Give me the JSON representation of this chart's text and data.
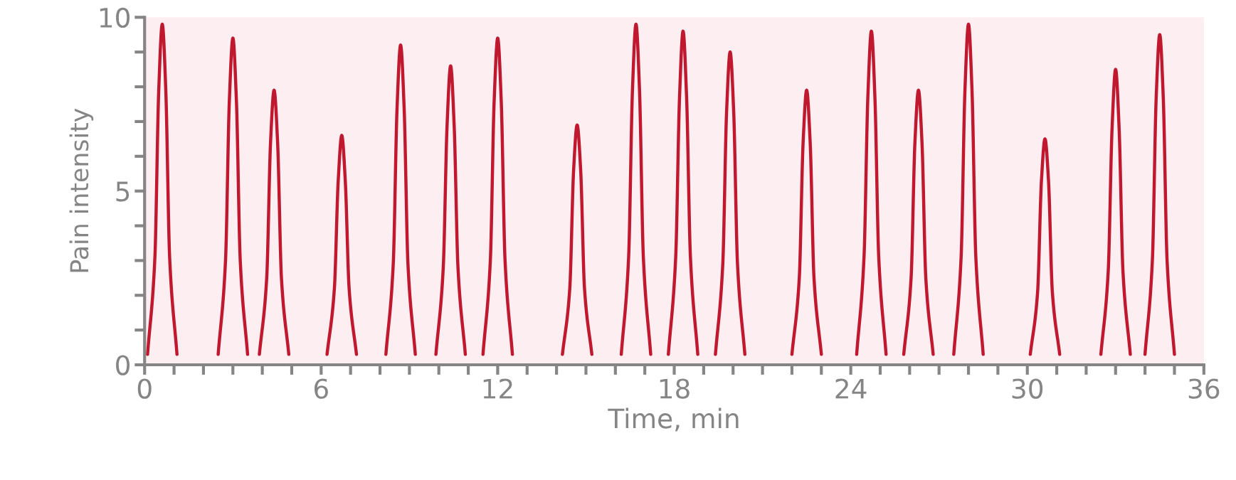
{
  "chart_data": {
    "type": "line",
    "xlabel": "Time, min",
    "ylabel": "Pain intensity",
    "xlim": [
      0,
      36
    ],
    "xticks": [
      0,
      {
        "value": 1,
        "label": null
      },
      {
        "value": 2,
        "label": null
      },
      {
        "value": 3,
        "label": null
      },
      {
        "value": 4,
        "label": null
      },
      {
        "value": 5,
        "label": null
      },
      6,
      {
        "value": 7,
        "label": null
      },
      {
        "value": 8,
        "label": null
      },
      {
        "value": 9,
        "label": null
      },
      {
        "value": 10,
        "label": null
      },
      {
        "value": 11,
        "label": null
      },
      12,
      {
        "value": 13,
        "label": null
      },
      {
        "value": 14,
        "label": null
      },
      {
        "value": 15,
        "label": null
      },
      {
        "value": 16,
        "label": null
      },
      {
        "value": 17,
        "label": null
      },
      18,
      {
        "value": 19,
        "label": null
      },
      {
        "value": 20,
        "label": null
      },
      {
        "value": 21,
        "label": null
      },
      {
        "value": 22,
        "label": null
      },
      {
        "value": 23,
        "label": null
      },
      24,
      {
        "value": 25,
        "label": null
      },
      {
        "value": 26,
        "label": null
      },
      {
        "value": 27,
        "label": null
      },
      {
        "value": 28,
        "label": null
      },
      {
        "value": 29,
        "label": null
      },
      30,
      {
        "value": 31,
        "label": null
      },
      {
        "value": 32,
        "label": null
      },
      {
        "value": 33,
        "label": null
      },
      {
        "value": 34,
        "label": null
      },
      {
        "value": 35,
        "label": null
      },
      36
    ],
    "ylim": [
      0,
      10
    ],
    "yticks": [
      0,
      {
        "value": 1,
        "label": null
      },
      {
        "value": 2,
        "label": null
      },
      {
        "value": 3,
        "label": null
      },
      {
        "value": 4,
        "label": null
      },
      5,
      {
        "value": 6,
        "label": null
      },
      {
        "value": 7,
        "label": null
      },
      {
        "value": 8,
        "label": null
      },
      {
        "value": 9,
        "label": null
      },
      10
    ],
    "grid": false,
    "legend": false,
    "marker": "none",
    "line_style": "solid",
    "series": [
      {
        "color": "#c0192f",
        "x": [
          0.1,
          0.35,
          0.48,
          0.6,
          0.72,
          0.85,
          1.1
        ],
        "values": [
          0.3,
          3.1,
          7.9,
          9.8,
          7.9,
          3.1,
          0.3
        ]
      },
      {
        "color": "#c0192f",
        "x": [
          2.5,
          2.75,
          2.88,
          3.0,
          3.12,
          3.25,
          3.5
        ],
        "values": [
          0.3,
          3.0,
          7.6,
          9.4,
          7.6,
          3.0,
          0.3
        ]
      },
      {
        "color": "#c0192f",
        "x": [
          3.9,
          4.15,
          4.28,
          4.4,
          4.52,
          4.65,
          4.9
        ],
        "values": [
          0.3,
          2.5,
          6.4,
          7.9,
          6.4,
          2.5,
          0.3
        ]
      },
      {
        "color": "#c0192f",
        "x": [
          6.2,
          6.45,
          6.58,
          6.7,
          6.82,
          6.95,
          7.2
        ],
        "values": [
          0.3,
          2.2,
          5.3,
          6.6,
          5.3,
          2.2,
          0.3
        ]
      },
      {
        "color": "#c0192f",
        "x": [
          8.2,
          8.45,
          8.58,
          8.7,
          8.82,
          8.95,
          9.2
        ],
        "values": [
          0.3,
          2.9,
          7.4,
          9.2,
          7.4,
          2.9,
          0.3
        ]
      },
      {
        "color": "#c0192f",
        "x": [
          9.9,
          10.15,
          10.28,
          10.4,
          10.52,
          10.65,
          10.9
        ],
        "values": [
          0.3,
          2.8,
          6.9,
          8.6,
          6.9,
          2.8,
          0.3
        ]
      },
      {
        "color": "#c0192f",
        "x": [
          11.5,
          11.75,
          11.88,
          12.0,
          12.12,
          12.25,
          12.5
        ],
        "values": [
          0.3,
          3.0,
          7.6,
          9.4,
          7.6,
          3.0,
          0.3
        ]
      },
      {
        "color": "#c0192f",
        "x": [
          14.2,
          14.45,
          14.58,
          14.7,
          14.82,
          14.95,
          15.2
        ],
        "values": [
          0.3,
          2.2,
          5.6,
          6.9,
          5.6,
          2.2,
          0.3
        ]
      },
      {
        "color": "#c0192f",
        "x": [
          16.2,
          16.45,
          16.58,
          16.7,
          16.82,
          16.95,
          17.2
        ],
        "values": [
          0.3,
          3.1,
          7.9,
          9.8,
          7.9,
          3.1,
          0.3
        ]
      },
      {
        "color": "#c0192f",
        "x": [
          17.8,
          18.05,
          18.18,
          18.3,
          18.42,
          18.55,
          18.8
        ],
        "values": [
          0.3,
          3.1,
          7.7,
          9.6,
          7.7,
          3.1,
          0.3
        ]
      },
      {
        "color": "#c0192f",
        "x": [
          19.4,
          19.65,
          19.78,
          19.9,
          20.02,
          20.15,
          20.4
        ],
        "values": [
          0.3,
          2.9,
          7.3,
          9.0,
          7.3,
          2.9,
          0.3
        ]
      },
      {
        "color": "#c0192f",
        "x": [
          22.0,
          22.25,
          22.38,
          22.5,
          22.62,
          22.75,
          23.0
        ],
        "values": [
          0.3,
          2.5,
          6.4,
          7.9,
          6.4,
          2.5,
          0.3
        ]
      },
      {
        "color": "#c0192f",
        "x": [
          24.2,
          24.45,
          24.58,
          24.7,
          24.82,
          24.95,
          25.2
        ],
        "values": [
          0.3,
          3.1,
          7.7,
          9.6,
          7.7,
          3.1,
          0.3
        ]
      },
      {
        "color": "#c0192f",
        "x": [
          25.8,
          26.05,
          26.18,
          26.3,
          26.42,
          26.55,
          26.8
        ],
        "values": [
          0.3,
          2.5,
          6.4,
          7.9,
          6.4,
          2.5,
          0.3
        ]
      },
      {
        "color": "#c0192f",
        "x": [
          27.5,
          27.75,
          27.88,
          28.0,
          28.12,
          28.25,
          28.5
        ],
        "values": [
          0.3,
          3.1,
          7.9,
          9.8,
          7.9,
          3.1,
          0.3
        ]
      },
      {
        "color": "#c0192f",
        "x": [
          30.1,
          30.35,
          30.48,
          30.6,
          30.72,
          30.85,
          31.1
        ],
        "values": [
          0.3,
          2.1,
          5.3,
          6.5,
          5.3,
          2.1,
          0.3
        ]
      },
      {
        "color": "#c0192f",
        "x": [
          32.5,
          32.75,
          32.88,
          33.0,
          33.12,
          33.25,
          33.5
        ],
        "values": [
          0.3,
          2.7,
          6.8,
          8.5,
          6.8,
          2.7,
          0.3
        ]
      },
      {
        "color": "#c0192f",
        "x": [
          34.0,
          34.25,
          34.38,
          34.5,
          34.62,
          34.75,
          35.0
        ],
        "values": [
          0.3,
          3.0,
          7.7,
          9.5,
          7.7,
          3.0,
          0.3
        ]
      }
    ]
  }
}
